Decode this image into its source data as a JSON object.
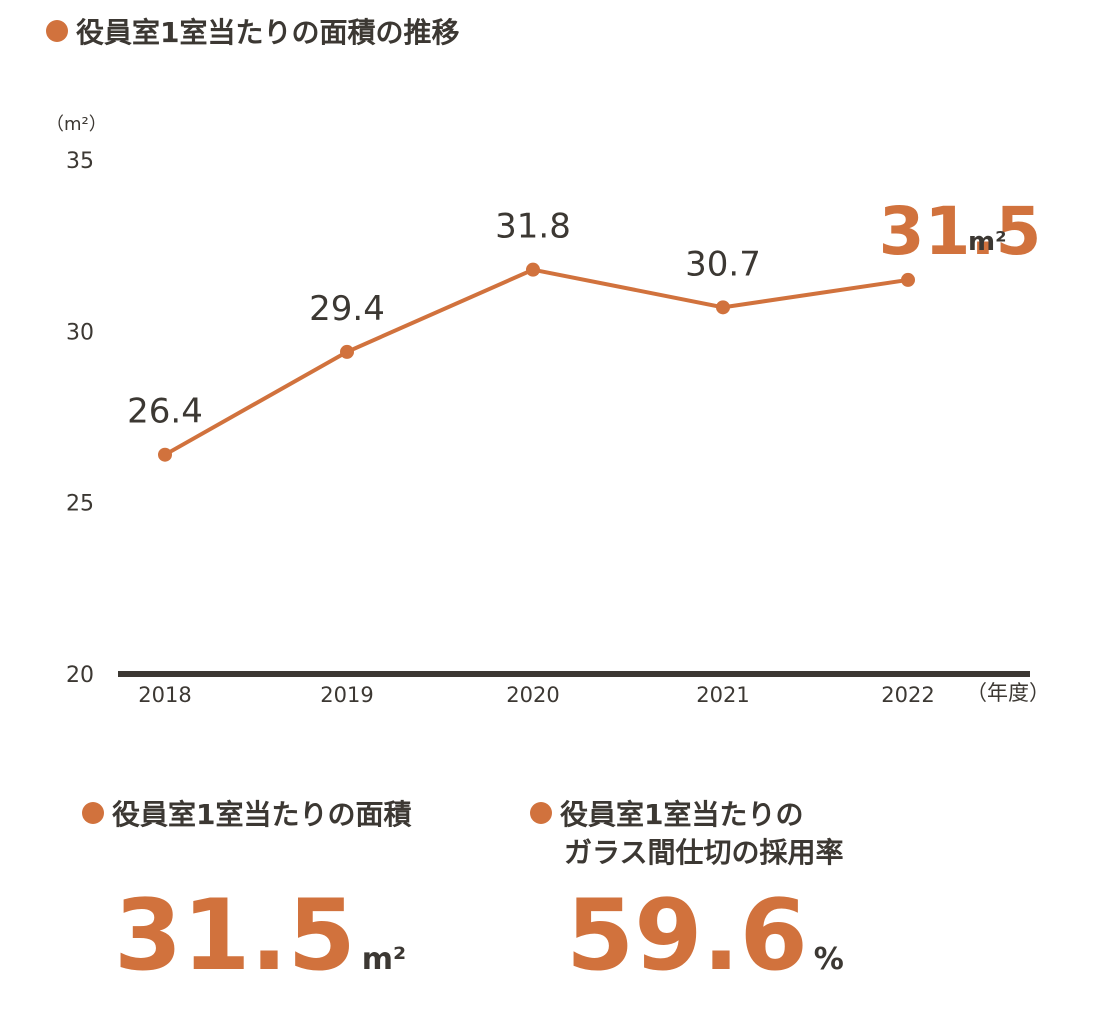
{
  "title": "役員室1室当たりの面積の推移",
  "colors": {
    "accent": "#d1723d",
    "text": "#3c3833",
    "axis": "#3c3833"
  },
  "chart_data": {
    "type": "line",
    "title": "役員室1室当たりの面積の推移",
    "y_unit": "（m²）",
    "x_unit": "（年度）",
    "categories": [
      "2018",
      "2019",
      "2020",
      "2021",
      "2022"
    ],
    "values": [
      26.4,
      29.4,
      31.8,
      30.7,
      31.5
    ],
    "value_labels": [
      "26.4",
      "29.4",
      "31.8",
      "30.7",
      "31.5"
    ],
    "highlight_unit": "m²",
    "ylim": [
      20,
      35
    ],
    "yticks": [
      20,
      25,
      30,
      35
    ],
    "grid": false,
    "legend": "none"
  },
  "stats": [
    {
      "label": "役員室1室当たりの面積",
      "label_line2": "",
      "value": "31.5",
      "unit": "m²"
    },
    {
      "label": "役員室1室当たりの",
      "label_line2": "ガラス間仕切の採用率",
      "value": "59.6",
      "unit": "%"
    }
  ]
}
